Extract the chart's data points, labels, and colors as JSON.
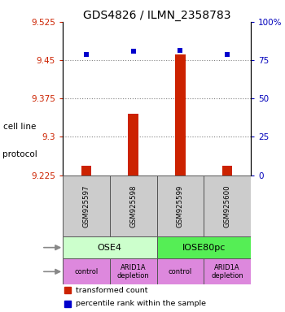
{
  "title": "GDS4826 / ILMN_2358783",
  "samples": [
    "GSM925597",
    "GSM925598",
    "GSM925599",
    "GSM925600"
  ],
  "bar_values": [
    9.243,
    9.345,
    9.462,
    9.243
  ],
  "dot_values": [
    9.462,
    9.468,
    9.469,
    9.462
  ],
  "bar_bottom": 9.225,
  "ylim": [
    9.225,
    9.525
  ],
  "yticks_left": [
    9.225,
    9.3,
    9.375,
    9.45,
    9.525
  ],
  "yticks_right": [
    0,
    25,
    50,
    75,
    100
  ],
  "ytick_labels_left": [
    "9.225",
    "9.3",
    "9.375",
    "9.45",
    "9.525"
  ],
  "ytick_labels_right": [
    "0",
    "25",
    "50",
    "75",
    "100%"
  ],
  "hlines": [
    9.3,
    9.375,
    9.45
  ],
  "bar_color": "#cc2200",
  "dot_color": "#0000cc",
  "cell_lines": [
    "OSE4",
    "IOSE80pc"
  ],
  "cell_line_colors": [
    "#ccffcc",
    "#55ee55"
  ],
  "cell_line_spans": [
    [
      0,
      2
    ],
    [
      2,
      4
    ]
  ],
  "protocols": [
    "control",
    "ARID1A\ndepletion",
    "control",
    "ARID1A\ndepletion"
  ],
  "protocol_color": "#dd88dd",
  "sample_box_color": "#cccccc",
  "legend_bar_color": "#cc2200",
  "legend_dot_color": "#0000cc",
  "ylabel_left_color": "#cc2200",
  "ylabel_right_color": "#0000bb",
  "title_fontsize": 10
}
